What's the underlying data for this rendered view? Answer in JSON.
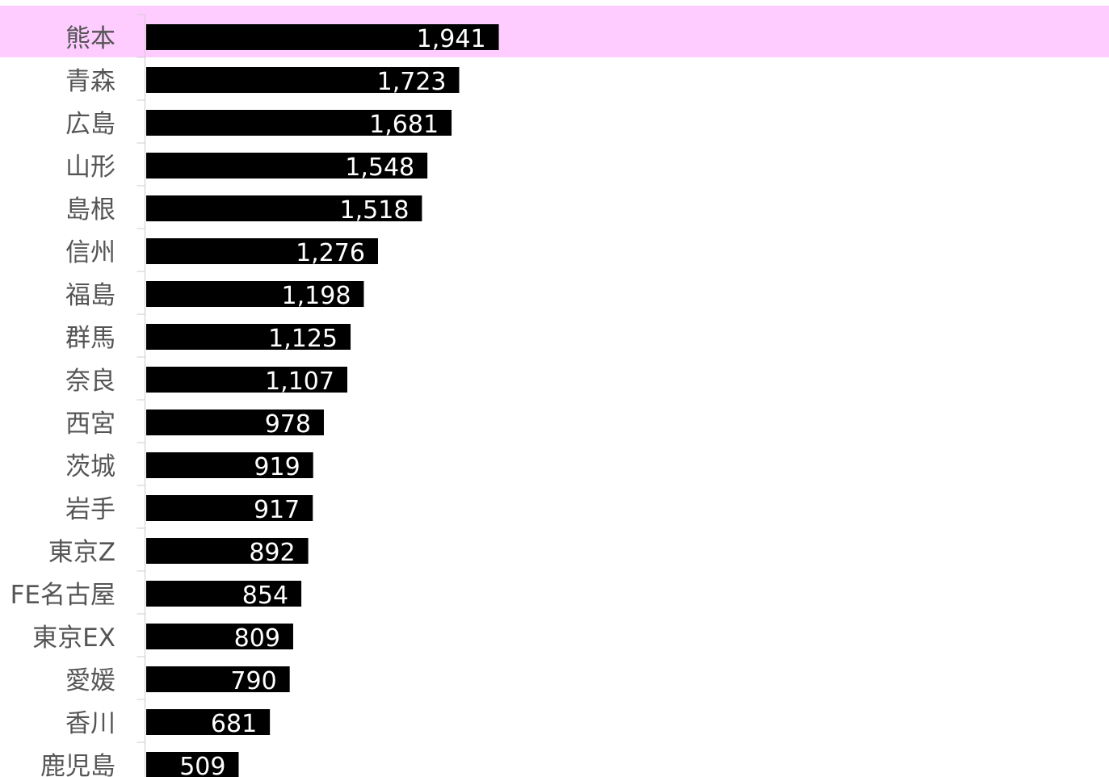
{
  "chart_data": {
    "type": "bar",
    "orientation": "horizontal",
    "categories": [
      "熊本",
      "青森",
      "広島",
      "山形",
      "島根",
      "信州",
      "福島",
      "群馬",
      "奈良",
      "西宮",
      "茨城",
      "岩手",
      "東京Z",
      "FE名古屋",
      "東京EX",
      "愛媛",
      "香川",
      "鹿児島"
    ],
    "values": [
      1941,
      1723,
      1681,
      1548,
      1518,
      1276,
      1198,
      1125,
      1107,
      978,
      919,
      917,
      892,
      854,
      809,
      790,
      681,
      509
    ],
    "value_labels": [
      "1,941",
      "1,723",
      "1,681",
      "1,548",
      "1,518",
      "1,276",
      "1,198",
      "1,125",
      "1,107",
      "978",
      "919",
      "917",
      "892",
      "854",
      "809",
      "790",
      "681",
      "509"
    ],
    "highlighted_category": "熊本",
    "title": "",
    "xlabel": "",
    "ylabel": "",
    "xlim": [
      0,
      5300
    ],
    "grid": false,
    "legend": "none",
    "colors": {
      "bar": "#000000",
      "value_label": "#ffffff",
      "category_label": "#555555",
      "highlight": "#ffccff",
      "axis": "#cccccc",
      "background": "#ffffff"
    }
  }
}
